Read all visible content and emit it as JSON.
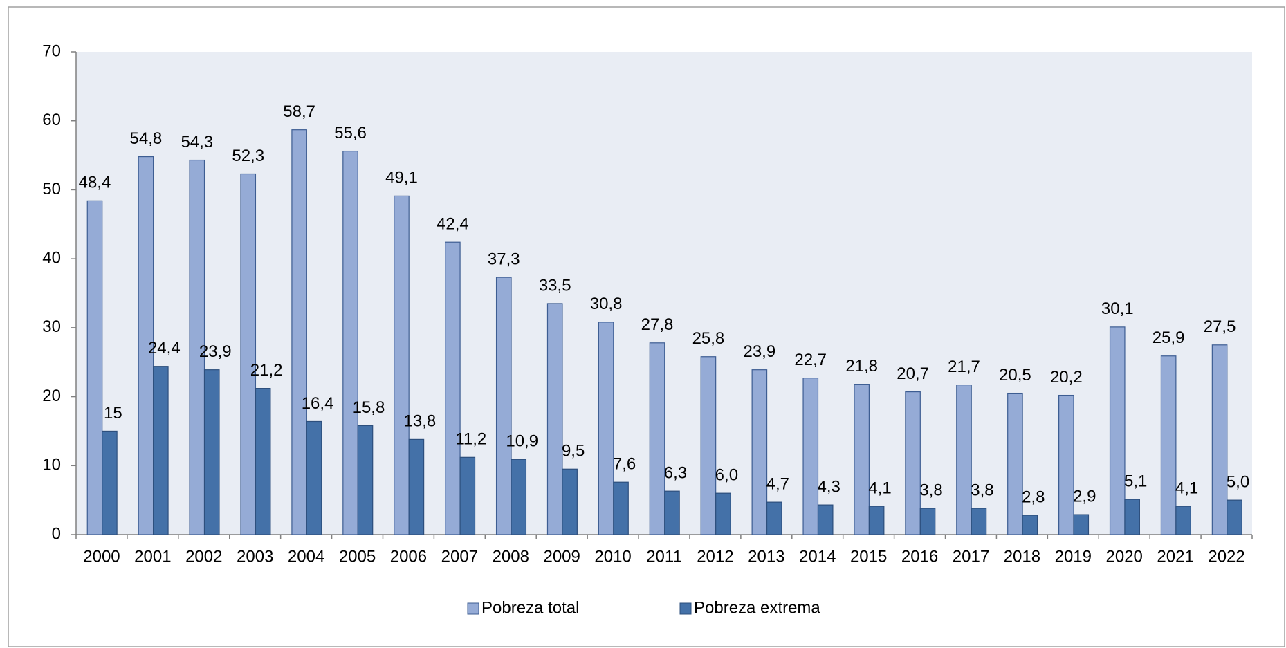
{
  "chart_data": {
    "type": "bar",
    "categories": [
      "2000",
      "2001",
      "2002",
      "2003",
      "2004",
      "2005",
      "2006",
      "2007",
      "2008",
      "2009",
      "2010",
      "2011",
      "2012",
      "2013",
      "2014",
      "2015",
      "2016",
      "2017",
      "2018",
      "2019",
      "2020",
      "2021",
      "2022"
    ],
    "series": [
      {
        "name": "Pobreza total",
        "color": "#95abd6",
        "values": [
          48.4,
          54.8,
          54.3,
          52.3,
          58.7,
          55.6,
          49.1,
          42.4,
          37.3,
          33.5,
          30.8,
          27.8,
          25.8,
          23.9,
          22.7,
          21.8,
          20.7,
          21.7,
          20.5,
          20.2,
          30.1,
          25.9,
          27.5
        ],
        "value_labels": [
          "48,4",
          "54,8",
          "54,3",
          "52,3",
          "58,7",
          "55,6",
          "49,1",
          "42,4",
          "37,3",
          "33,5",
          "30,8",
          "27,8",
          "25,8",
          "23,9",
          "22,7",
          "21,8",
          "20,7",
          "21,7",
          "20,5",
          "20,2",
          "30,1",
          "25,9",
          "27,5"
        ]
      },
      {
        "name": "Pobreza extrema",
        "color": "#4471a8",
        "values": [
          15,
          24.4,
          23.9,
          21.2,
          16.4,
          15.8,
          13.8,
          11.2,
          10.9,
          9.5,
          7.6,
          6.3,
          6.0,
          4.7,
          4.3,
          4.1,
          3.8,
          3.8,
          2.8,
          2.9,
          5.1,
          4.1,
          5.0
        ],
        "value_labels": [
          "15",
          "24,4",
          "23,9",
          "21,2",
          "16,4",
          "15,8",
          "13,8",
          "11,2",
          "10,9",
          "9,5",
          "7,6",
          "6,3",
          "6,0",
          "4,7",
          "4,3",
          "4,1",
          "3,8",
          "3,8",
          "2,8",
          "2,9",
          "5,1",
          "4,1",
          "5,0"
        ]
      }
    ],
    "ylim": [
      0,
      70
    ],
    "yticks": [
      0,
      10,
      20,
      30,
      40,
      50,
      60,
      70
    ],
    "legend": "bottom"
  }
}
